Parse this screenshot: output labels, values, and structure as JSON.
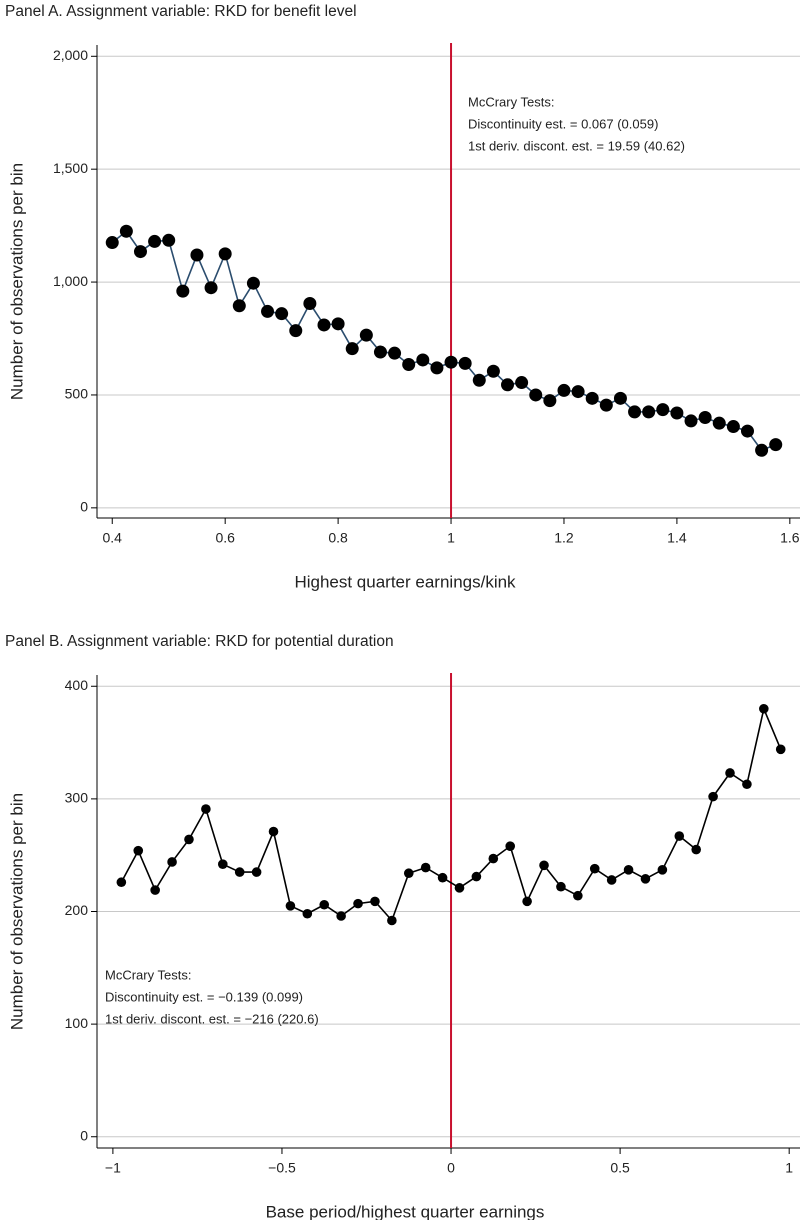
{
  "chart_data": [
    {
      "type": "line",
      "title": "Panel A. Assignment variable: RKD for benefit level",
      "xlabel": "Highest quarter earnings/kink",
      "ylabel": "Number of observations per bin",
      "annotations": [
        "McCrary Tests:",
        "Discontinuity est. = 0.067 (0.059)",
        "1st deriv. discont. est. = 19.59 (40.62)"
      ],
      "x": [
        0.4,
        0.425,
        0.45,
        0.475,
        0.5,
        0.525,
        0.55,
        0.575,
        0.6,
        0.625,
        0.65,
        0.675,
        0.7,
        0.725,
        0.75,
        0.775,
        0.8,
        0.825,
        0.85,
        0.875,
        0.9,
        0.925,
        0.95,
        0.975,
        1.0,
        1.025,
        1.05,
        1.075,
        1.1,
        1.125,
        1.15,
        1.175,
        1.2,
        1.225,
        1.25,
        1.275,
        1.3,
        1.325,
        1.35,
        1.375,
        1.4,
        1.425,
        1.45,
        1.475,
        1.5,
        1.525,
        1.55,
        1.575
      ],
      "values": [
        1175,
        1225,
        1135,
        1180,
        1185,
        960,
        1120,
        975,
        1125,
        895,
        995,
        870,
        860,
        785,
        905,
        810,
        815,
        705,
        765,
        690,
        685,
        635,
        655,
        620,
        645,
        640,
        565,
        605,
        545,
        555,
        500,
        475,
        520,
        515,
        485,
        455,
        485,
        425,
        425,
        435,
        420,
        385,
        400,
        375,
        360,
        340,
        255,
        280
      ],
      "line_color": "#2b4d6e",
      "marker_color": "#000000",
      "vline": 1,
      "vline_color": "#c8102e",
      "xlim": [
        0.373,
        1.618
      ],
      "ylim": [
        -45,
        2050
      ],
      "xticks": [
        0.4,
        0.6,
        0.8,
        1,
        1.2,
        1.4,
        1.6
      ],
      "yticks": [
        0,
        500,
        {
          "value": 1000,
          "label": "1,000"
        },
        {
          "value": 1500,
          "label": "1,500"
        },
        {
          "value": 2000,
          "label": "2,000"
        }
      ],
      "grid": true
    },
    {
      "type": "line",
      "title": "Panel B. Assignment variable: RKD for potential duration",
      "xlabel": "Base period/highest quarter earnings",
      "ylabel": "Number of observations per bin",
      "annotations": [
        "McCrary Tests:",
        "Discontinuity est. = −0.139 (0.099)",
        "1st deriv. discont. est. = −216 (220.6)"
      ],
      "x": [
        -0.975,
        -0.925,
        -0.875,
        -0.825,
        -0.775,
        -0.725,
        -0.675,
        -0.625,
        -0.575,
        -0.525,
        -0.475,
        -0.425,
        -0.375,
        -0.325,
        -0.275,
        -0.225,
        -0.175,
        -0.125,
        -0.075,
        -0.025,
        0.025,
        0.075,
        0.125,
        0.175,
        0.225,
        0.275,
        0.325,
        0.375,
        0.425,
        0.475,
        0.525,
        0.575,
        0.625,
        0.675,
        0.725,
        0.775,
        0.825,
        0.875,
        0.925,
        0.975
      ],
      "values": [
        226,
        254,
        219,
        244,
        264,
        291,
        242,
        235,
        235,
        271,
        205,
        198,
        206,
        196,
        207,
        209,
        192,
        234,
        239,
        230,
        221,
        231,
        247,
        258,
        209,
        241,
        222,
        214,
        238,
        228,
        237,
        229,
        237,
        267,
        255,
        302,
        323,
        313,
        380,
        344
      ],
      "line_color": "#000000",
      "marker_color": "#000000",
      "vline": 0,
      "vline_color": "#c8102e",
      "xlim": [
        -1.047,
        1.032
      ],
      "ylim": [
        -10,
        410
      ],
      "xticks": [
        {
          "value": -1,
          "label": "−1"
        },
        {
          "value": -0.5,
          "label": "−0.5"
        },
        0,
        0.5,
        1
      ],
      "yticks": [
        0,
        100,
        200,
        300,
        400
      ],
      "grid": true
    }
  ]
}
